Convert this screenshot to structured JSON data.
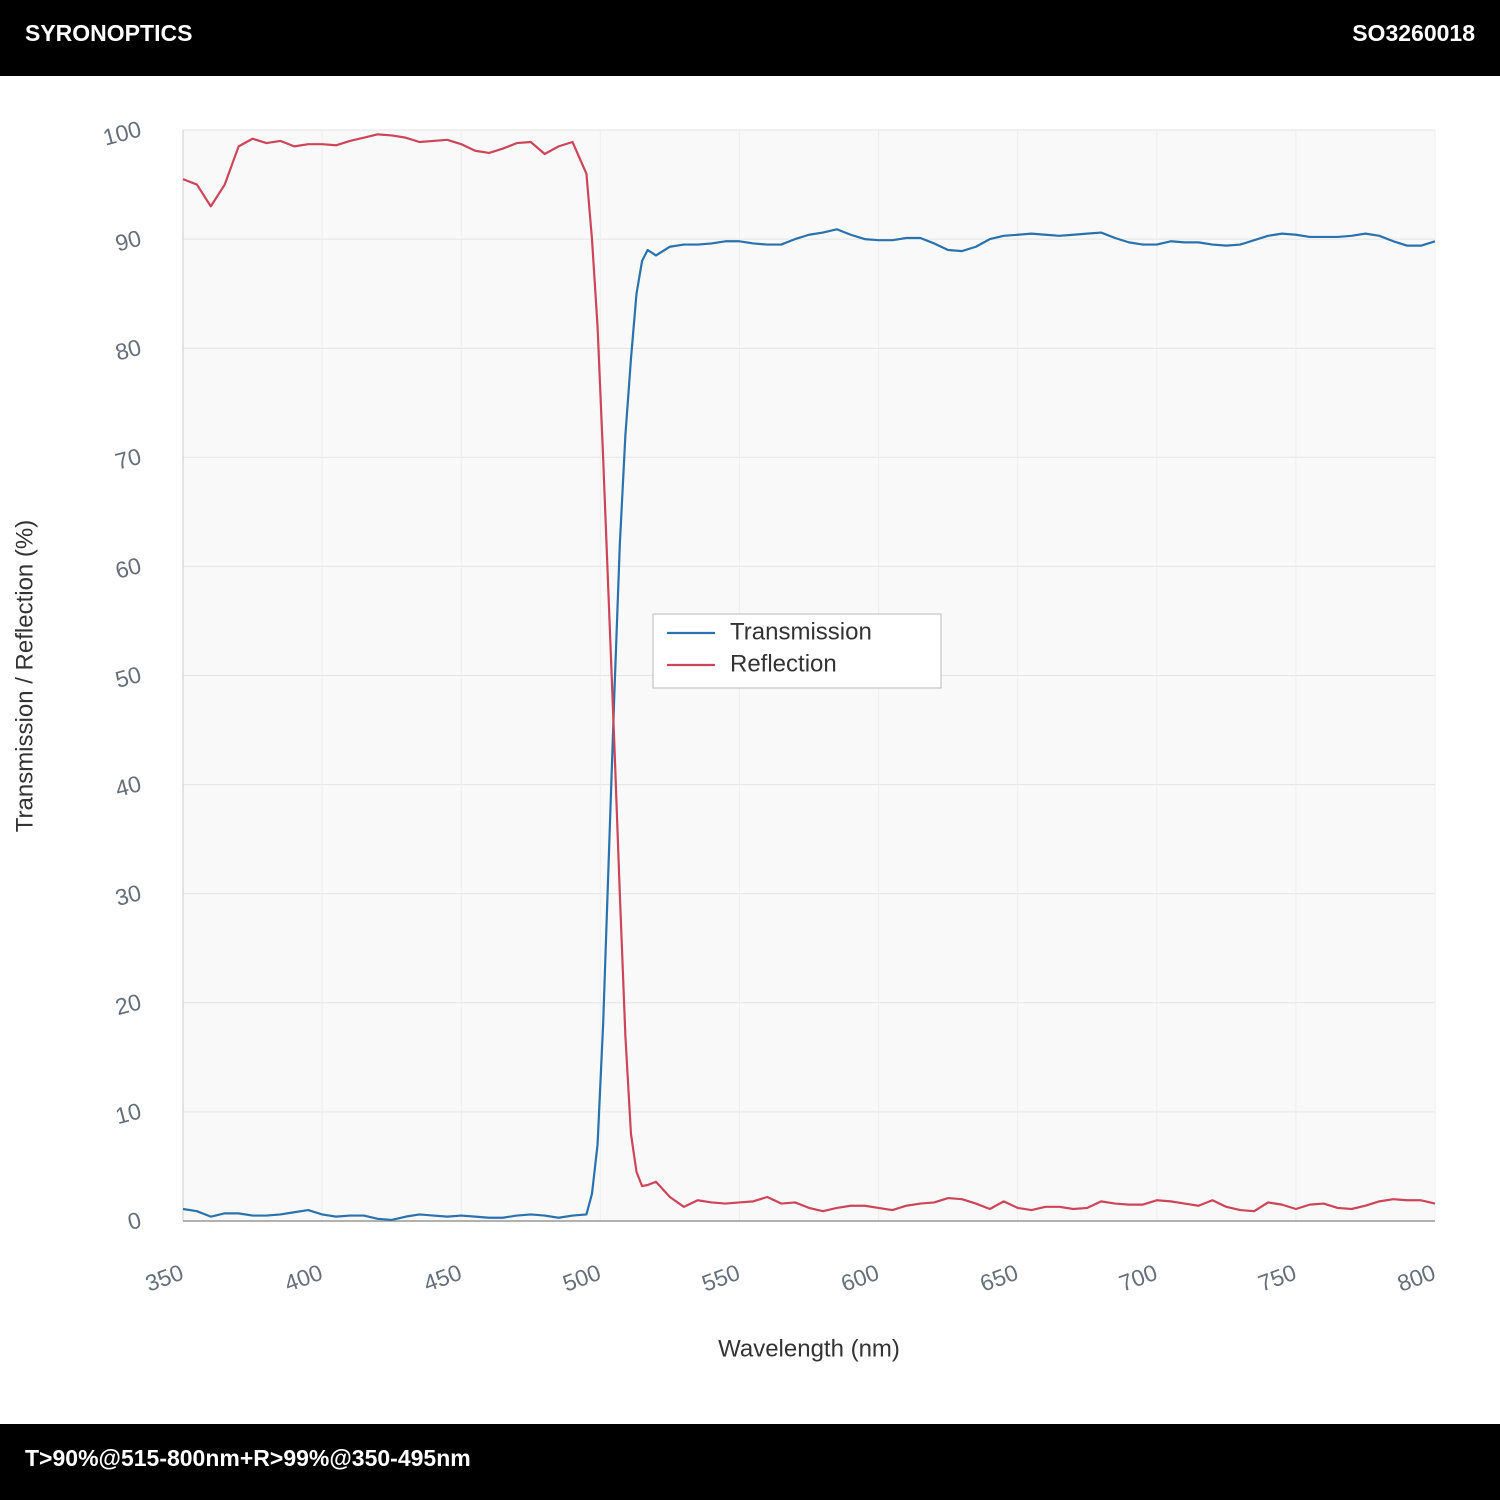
{
  "header": {
    "left": "SYRONOPTICS",
    "right": "SO3260018"
  },
  "footer": {
    "text": "T>90%@515-800nm+R>99%@350-495nm"
  },
  "chart_data": {
    "type": "line",
    "xlabel": "Wavelength (nm)",
    "ylabel": "Transmission / Reflection (%)",
    "x": [
      350,
      355,
      360,
      365,
      370,
      375,
      380,
      385,
      390,
      395,
      400,
      405,
      410,
      415,
      420,
      425,
      430,
      435,
      440,
      445,
      450,
      455,
      460,
      465,
      470,
      475,
      480,
      485,
      490,
      495,
      497,
      499,
      501,
      503,
      505,
      507,
      509,
      511,
      513,
      515,
      517,
      520,
      525,
      530,
      535,
      540,
      545,
      550,
      555,
      560,
      565,
      570,
      575,
      580,
      585,
      590,
      595,
      600,
      605,
      610,
      615,
      620,
      625,
      630,
      635,
      640,
      645,
      650,
      655,
      660,
      665,
      670,
      675,
      680,
      685,
      690,
      695,
      700,
      705,
      710,
      715,
      720,
      725,
      730,
      735,
      740,
      745,
      750,
      755,
      760,
      765,
      770,
      775,
      780,
      785,
      790,
      795,
      800
    ],
    "series": [
      {
        "name": "Transmission",
        "color": "#2a72ad",
        "values": [
          1.1,
          0.9,
          0.4,
          0.7,
          0.7,
          0.5,
          0.5,
          0.6,
          0.8,
          1.0,
          0.6,
          0.4,
          0.5,
          0.5,
          0.2,
          0.1,
          0.4,
          0.6,
          0.5,
          0.4,
          0.5,
          0.4,
          0.3,
          0.3,
          0.5,
          0.6,
          0.5,
          0.3,
          0.5,
          0.6,
          2.5,
          7,
          18,
          33,
          48,
          62,
          72,
          79,
          85,
          88,
          89,
          88.5,
          89.3,
          89.5,
          89.5,
          89.6,
          89.8,
          89.8,
          89.6,
          89.5,
          89.5,
          90.0,
          90.4,
          90.6,
          90.9,
          90.4,
          90.0,
          89.9,
          89.9,
          90.1,
          90.1,
          89.6,
          89.0,
          88.9,
          89.3,
          90.0,
          90.3,
          90.4,
          90.5,
          90.4,
          90.3,
          90.4,
          90.5,
          90.6,
          90.1,
          89.7,
          89.5,
          89.5,
          89.8,
          89.7,
          89.7,
          89.5,
          89.4,
          89.5,
          89.9,
          90.3,
          90.5,
          90.4,
          90.2,
          90.2,
          90.2,
          90.3,
          90.5,
          90.3,
          89.8,
          89.4,
          89.4,
          89.8
        ]
      },
      {
        "name": "Reflection",
        "color": "#cc4559",
        "values": [
          95.5,
          95,
          93,
          95,
          98.5,
          99.2,
          98.8,
          99,
          98.5,
          98.7,
          98.7,
          98.6,
          99,
          99.3,
          99.6,
          99.5,
          99.3,
          98.9,
          99,
          99.1,
          98.7,
          98.1,
          97.9,
          98.3,
          98.8,
          98.9,
          97.8,
          98.5,
          98.9,
          96,
          90,
          82,
          70,
          57,
          44,
          30,
          17,
          8,
          4.5,
          3.2,
          3.3,
          3.6,
          2.2,
          1.3,
          1.9,
          1.7,
          1.6,
          1.7,
          1.8,
          2.2,
          1.6,
          1.7,
          1.2,
          0.9,
          1.2,
          1.4,
          1.4,
          1.2,
          1.0,
          1.4,
          1.6,
          1.7,
          2.1,
          2.0,
          1.6,
          1.1,
          1.8,
          1.2,
          1.0,
          1.3,
          1.3,
          1.1,
          1.2,
          1.8,
          1.6,
          1.5,
          1.5,
          1.9,
          1.8,
          1.6,
          1.4,
          1.9,
          1.3,
          1.0,
          0.9,
          1.7,
          1.5,
          1.1,
          1.5,
          1.6,
          1.2,
          1.1,
          1.4,
          1.8,
          2.0,
          1.9,
          1.9,
          1.6
        ]
      }
    ],
    "xlim": [
      350,
      800
    ],
    "xticks": [
      350,
      400,
      450,
      500,
      550,
      600,
      650,
      700,
      750,
      800
    ],
    "ylim": [
      0,
      100
    ],
    "yticks": [
      0,
      10,
      20,
      30,
      40,
      50,
      60,
      70,
      80,
      90,
      100
    ],
    "grid": true,
    "legend_position": "center"
  }
}
